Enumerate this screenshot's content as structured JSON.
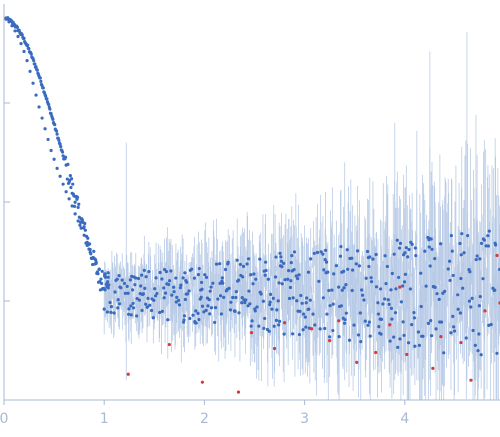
{
  "chart_data": {
    "type": "scatter",
    "title": "",
    "xlabel": "",
    "ylabel": "",
    "xlim": [
      0,
      4.95
    ],
    "ylim": [
      0,
      1
    ],
    "x_ticks": [
      0,
      1,
      2,
      3,
      4
    ],
    "x_tick_labels": [
      "0",
      "1",
      "2",
      "3",
      "4"
    ],
    "y_tick_count": 3,
    "grid": false,
    "series": [
      {
        "color": "#3a6bbf",
        "error_bar_color": "#b9cbe6",
        "points": [
          [
            0.02,
            0.962
          ],
          [
            0.05,
            0.955
          ],
          [
            0.08,
            0.945
          ],
          [
            0.11,
            0.932
          ],
          [
            0.14,
            0.918
          ],
          [
            0.17,
            0.9
          ],
          [
            0.2,
            0.88
          ],
          [
            0.23,
            0.857
          ],
          [
            0.26,
            0.83
          ],
          [
            0.29,
            0.8
          ],
          [
            0.32,
            0.77
          ],
          [
            0.35,
            0.74
          ],
          [
            0.38,
            0.712
          ],
          [
            0.41,
            0.685
          ],
          [
            0.44,
            0.658
          ],
          [
            0.47,
            0.63
          ],
          [
            0.5,
            0.608
          ],
          [
            0.53,
            0.585
          ],
          [
            0.56,
            0.565
          ],
          [
            0.59,
            0.545
          ],
          [
            0.62,
            0.526
          ],
          [
            0.65,
            0.508
          ],
          [
            0.68,
            0.49
          ],
          [
            0.71,
            0.47
          ],
          [
            0.74,
            0.452
          ],
          [
            0.77,
            0.434
          ],
          [
            0.8,
            0.416
          ],
          [
            0.83,
            0.398
          ],
          [
            0.86,
            0.38
          ],
          [
            0.89,
            0.36
          ],
          [
            0.92,
            0.345
          ],
          [
            0.95,
            0.33
          ],
          [
            0.98,
            0.325
          ],
          [
            1.01,
            0.318
          ],
          [
            1.04,
            0.31
          ]
        ]
      },
      {
        "color": "#d63a3a",
        "points": [
          [
            1.24,
            0.065
          ],
          [
            1.65,
            0.14
          ],
          [
            1.98,
            0.045
          ],
          [
            2.34,
            0.02
          ],
          [
            2.47,
            0.17
          ],
          [
            2.7,
            0.13
          ],
          [
            2.8,
            0.195
          ],
          [
            3.07,
            0.18
          ],
          [
            3.25,
            0.15
          ],
          [
            3.34,
            0.2
          ],
          [
            3.52,
            0.095
          ],
          [
            3.71,
            0.12
          ],
          [
            3.85,
            0.19
          ],
          [
            3.95,
            0.285
          ],
          [
            4.02,
            0.115
          ],
          [
            4.28,
            0.08
          ],
          [
            4.36,
            0.16
          ],
          [
            4.56,
            0.145
          ],
          [
            4.66,
            0.05
          ],
          [
            4.8,
            0.225
          ],
          [
            4.92,
            0.365
          ],
          [
            4.95,
            0.245
          ]
        ]
      }
    ]
  }
}
